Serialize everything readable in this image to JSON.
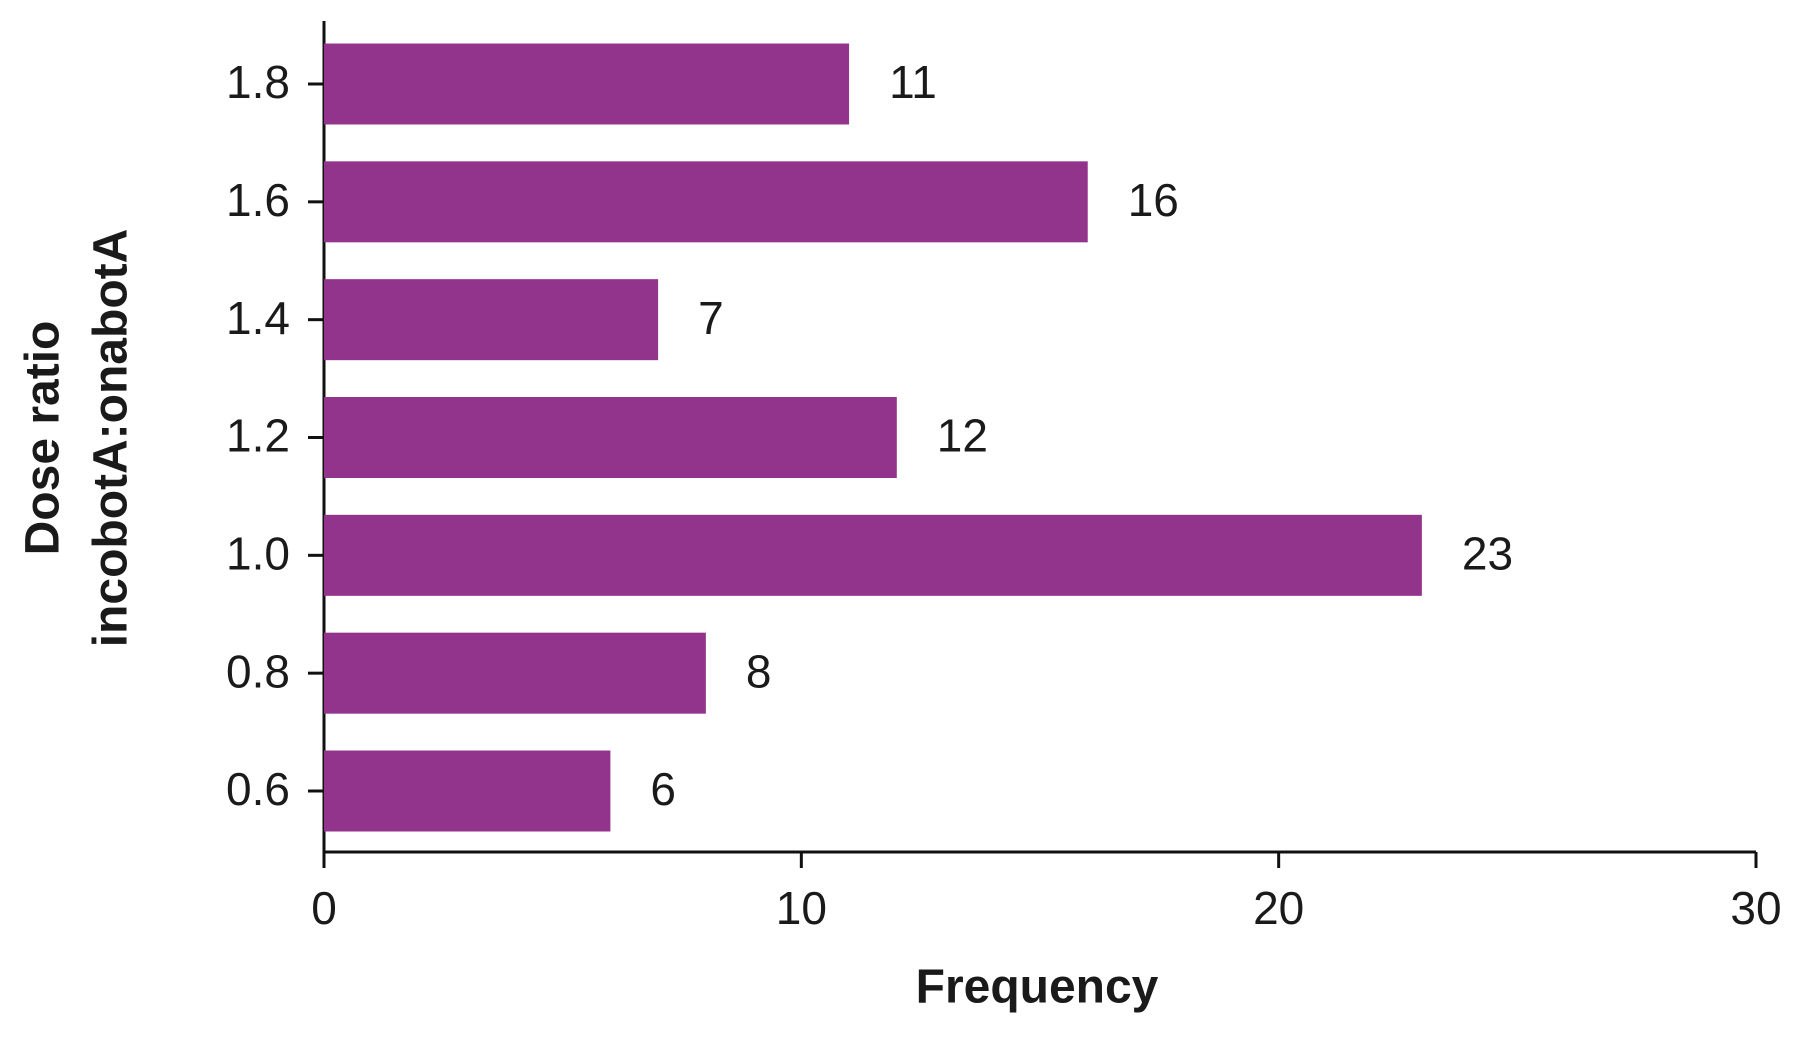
{
  "chart_data": {
    "type": "barh",
    "categories": [
      "0.6",
      "0.8",
      "1.0",
      "1.2",
      "1.4",
      "1.6",
      "1.8"
    ],
    "values": [
      6,
      8,
      23,
      12,
      7,
      16,
      11
    ],
    "color": "#93348c",
    "xlabel": "Frequency",
    "ylabel": [
      "Dose ratio",
      "incobotA:onabotA"
    ],
    "xlim": [
      0,
      30
    ],
    "xticks": [
      0,
      10,
      20,
      30
    ]
  }
}
